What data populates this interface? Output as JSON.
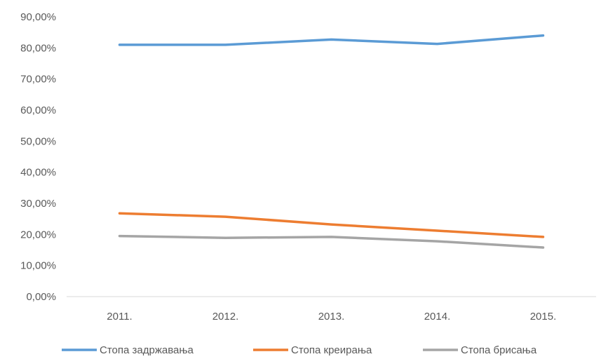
{
  "chart_data": {
    "type": "line",
    "title": "",
    "xlabel": "",
    "ylabel": "",
    "categories": [
      "2011.",
      "2012.",
      "2013.",
      "2014.",
      "2015."
    ],
    "ylim": [
      0,
      90
    ],
    "ytick_values": [
      0,
      10,
      20,
      30,
      40,
      50,
      60,
      70,
      80,
      90
    ],
    "ytick_labels": [
      "0,00%",
      "10,00%",
      "20,00%",
      "30,00%",
      "40,00%",
      "50,00%",
      "60,00%",
      "70,00%",
      "80,00%",
      "90,00%"
    ],
    "grid": false,
    "legend_position": "bottom",
    "series": [
      {
        "name": "Стопа задржавања",
        "color": "#5B9BD5",
        "values": [
          81.0,
          81.0,
          82.7,
          81.3,
          84.0
        ]
      },
      {
        "name": "Стопа креирања",
        "color": "#ED7D31",
        "values": [
          26.8,
          25.7,
          23.2,
          21.2,
          19.2
        ]
      },
      {
        "name": "Стопа брисања",
        "color": "#A5A5A5",
        "values": [
          19.5,
          18.9,
          19.2,
          17.8,
          15.8
        ]
      }
    ]
  }
}
